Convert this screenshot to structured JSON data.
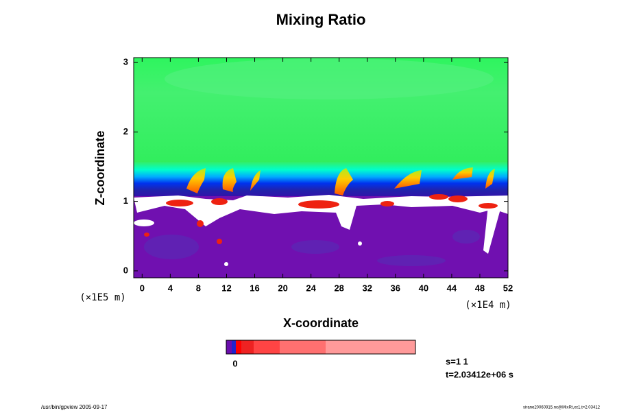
{
  "chart_data": {
    "type": "field",
    "title": "Mixing Ratio",
    "xlabel": "X-coordinate",
    "ylabel": "Z-coordinate",
    "x_unit": "(×1E4 m)",
    "y_unit": "(×1E5 m)",
    "xlim": [
      -1.2,
      52
    ],
    "ylim": [
      -0.1,
      3.07
    ],
    "xticks": [
      0,
      4,
      8,
      12,
      16,
      20,
      24,
      28,
      32,
      36,
      40,
      44,
      48,
      52
    ],
    "yticks": [
      0,
      1,
      2,
      3
    ],
    "colorbar": {
      "colors": [
        "#6a0dad",
        "#2222cc",
        "#ff0000",
        "#ee2222",
        "#ff4444",
        "#ff7070",
        "#ff9a9a"
      ],
      "tick_label": "0"
    },
    "annotations": [
      "s=1 1",
      "t=2.03412e+06 s"
    ],
    "footer_left": "/usr/bin/gpview 2005-09-17",
    "footer_right": "sirane20060915.nc@MixRt,xc1,t=2.03412"
  }
}
